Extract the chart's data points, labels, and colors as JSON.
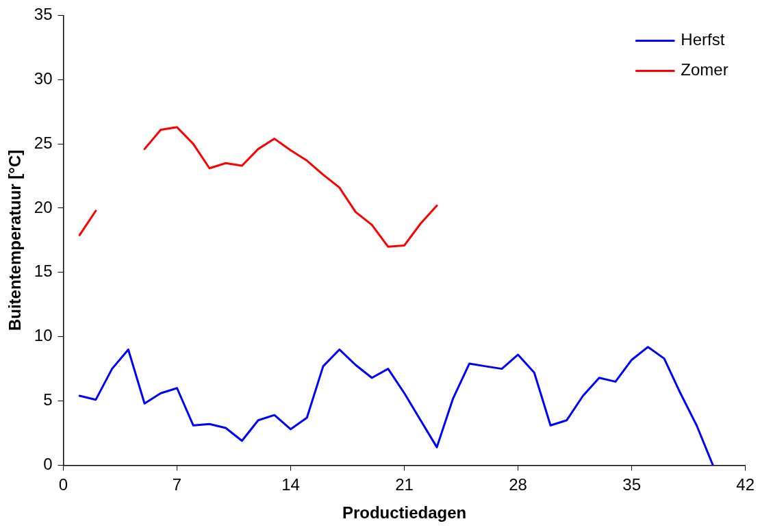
{
  "chart_data": {
    "type": "line",
    "xlabel": "Productiedagen",
    "ylabel": "Buitentemperatuur [°C]",
    "x": [
      1,
      2,
      3,
      4,
      5,
      6,
      7,
      8,
      9,
      10,
      11,
      12,
      13,
      14,
      15,
      16,
      17,
      18,
      19,
      20,
      21,
      22,
      23,
      24,
      25,
      26,
      27,
      28,
      29,
      30,
      31,
      32,
      33,
      34,
      35,
      36,
      37,
      38,
      39,
      40
    ],
    "series": [
      {
        "name": "Herfst",
        "color": "#0000ff",
        "values": [
          5.4,
          5.1,
          7.5,
          9.0,
          4.8,
          5.6,
          6.0,
          3.1,
          3.2,
          2.9,
          1.9,
          3.5,
          3.9,
          2.8,
          3.7,
          7.7,
          9.0,
          7.8,
          6.8,
          7.5,
          5.6,
          3.5,
          1.4,
          5.2,
          7.9,
          7.7,
          7.5,
          8.6,
          7.2,
          3.1,
          3.5,
          5.4,
          6.8,
          6.5,
          8.2,
          9.2,
          8.3,
          5.6,
          3.1,
          0
        ]
      },
      {
        "name": "Zomer",
        "color": "#ff0000",
        "values": [
          17.9,
          19.8,
          null,
          null,
          24.6,
          26.1,
          26.3,
          25.0,
          23.1,
          23.5,
          23.3,
          24.6,
          25.4,
          24.5,
          23.7,
          22.6,
          21.6,
          19.7,
          18.7,
          17.0,
          17.1,
          18.8,
          20.2,
          null,
          null,
          null,
          null,
          null,
          null,
          null,
          null,
          null,
          null,
          null,
          null,
          null,
          null,
          null,
          null,
          null
        ]
      }
    ],
    "xlim": [
      0,
      42
    ],
    "xticks": [
      0,
      7,
      14,
      21,
      28,
      35,
      42
    ],
    "ylim": [
      0,
      35
    ],
    "yticks": [
      0,
      5,
      10,
      15,
      20,
      25,
      30,
      35
    ],
    "grid": false,
    "legend": "top right",
    "marker": "none",
    "line_style": "solid"
  }
}
